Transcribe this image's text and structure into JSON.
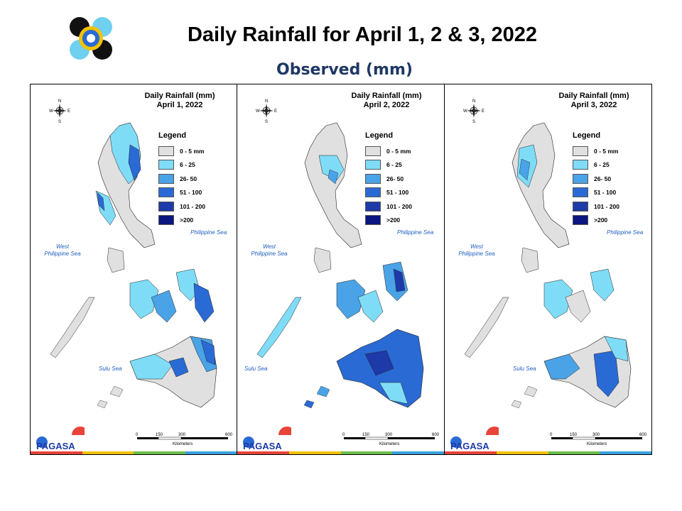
{
  "header": {
    "title": "Daily Rainfall for April 1, 2 & 3, 2022",
    "subtitle": "Observed (mm)"
  },
  "legend": {
    "title": "Legend",
    "items": [
      {
        "label": "0 - 5 mm",
        "color": "#e0e0e0"
      },
      {
        "label": "6 - 25",
        "color": "#7fdcf7"
      },
      {
        "label": "26- 50",
        "color": "#4aa3e6"
      },
      {
        "label": "51 - 100",
        "color": "#2a6ad4"
      },
      {
        "label": "101 - 200",
        "color": "#1d3aa8"
      },
      {
        "label": ">200",
        "color": "#0b1680"
      }
    ]
  },
  "panels": [
    {
      "title_line1": "Daily Rainfall (mm)",
      "title_line2": "April 1, 2022"
    },
    {
      "title_line1": "Daily Rainfall (mm)",
      "title_line2": "April 2, 2022"
    },
    {
      "title_line1": "Daily Rainfall (mm)",
      "title_line2": "April 3, 2022"
    }
  ],
  "labels": {
    "west_sea_line1": "West",
    "west_sea_line2": "Philippine Sea",
    "philippine_sea": "Philippine Sea",
    "sulu_sea": "Sulu Sea",
    "compass_n": "N",
    "compass_s": "S",
    "compass_e": "E",
    "compass_w": "W"
  },
  "scale": {
    "ticks": [
      "0",
      "150",
      "300",
      "600"
    ],
    "unit": "Kilometers"
  },
  "branding": {
    "pagasa": "PAGASA"
  }
}
